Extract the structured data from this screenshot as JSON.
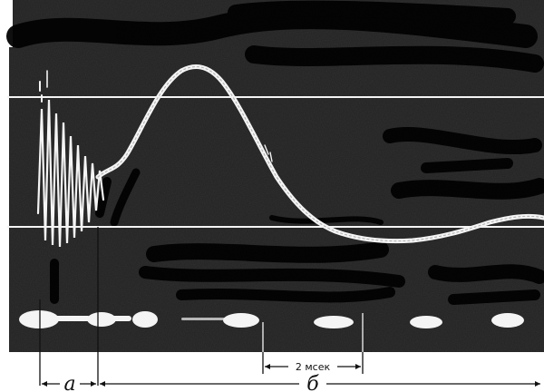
{
  "figure": {
    "time_scale_label": "2 мсек",
    "interval_a_label": "а",
    "interval_b_label": "б"
  },
  "colors": {
    "screen_background": "#232323",
    "trace": "#f4f4f4",
    "markers": "#f4f4f4",
    "annotation": "#111111"
  }
}
